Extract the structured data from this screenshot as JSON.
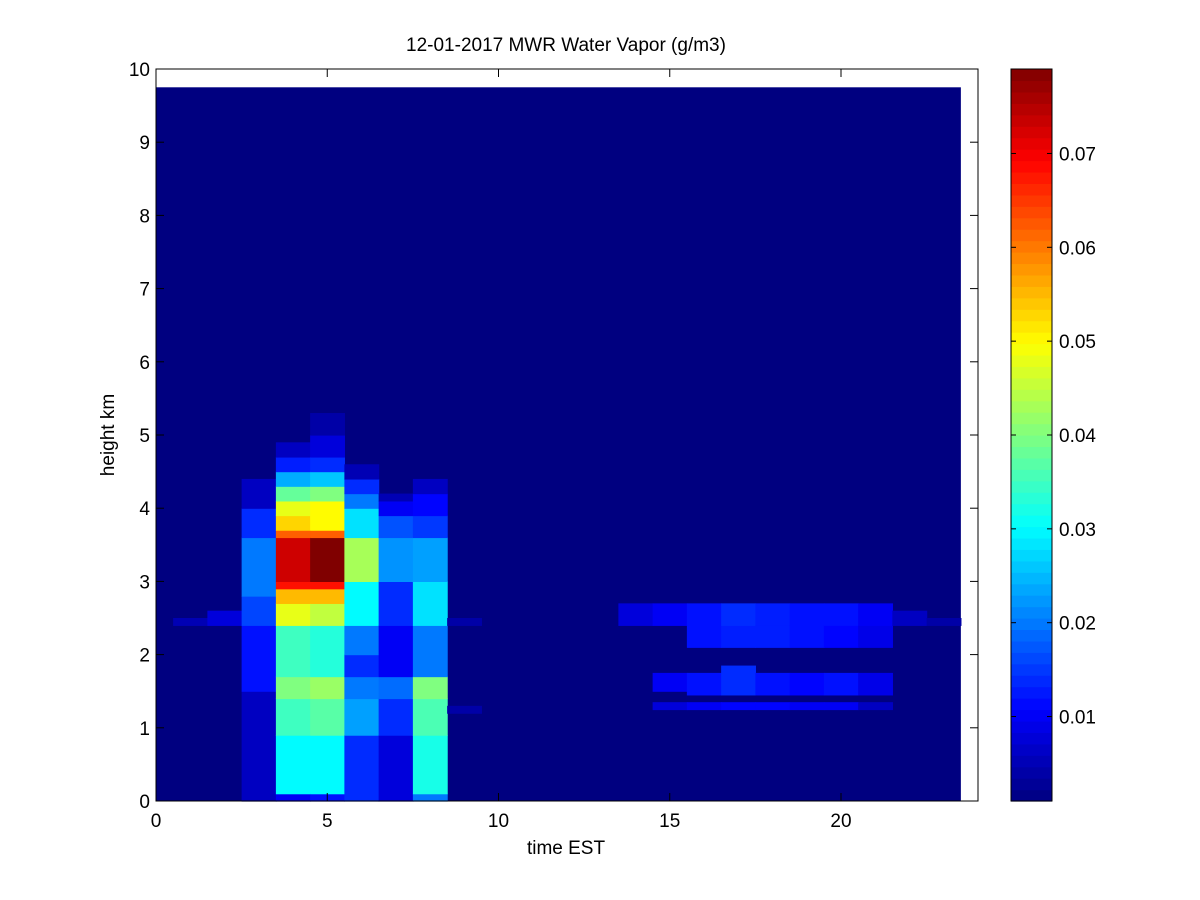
{
  "chart_data": {
    "type": "heatmap",
    "title": "12-01-2017 MWR Water Vapor (g/m3)",
    "xlabel": "time EST",
    "ylabel": "height km",
    "xlim": [
      0,
      24
    ],
    "ylim": [
      0,
      10
    ],
    "x_ticks": [
      0,
      5,
      10,
      15,
      20
    ],
    "y_ticks": [
      0,
      1,
      2,
      3,
      4,
      5,
      6,
      7,
      8,
      9,
      10
    ],
    "colormap": "jet",
    "clim": [
      0.001,
      0.079
    ],
    "colorbar_ticks": [
      0.01,
      0.02,
      0.03,
      0.04,
      0.05,
      0.06,
      0.07
    ],
    "colorbar_tick_labels": [
      "0.01",
      "0.02",
      "0.03",
      "0.04",
      "0.05",
      "0.06",
      "0.07"
    ],
    "grid": false,
    "background_value": 0.001,
    "data_extent": {
      "time_hours": [
        0,
        23.5
      ],
      "height_km": [
        0,
        9.75
      ]
    },
    "time_bins_hours": [
      0,
      1,
      2,
      3,
      4,
      5,
      6,
      7,
      8,
      9,
      10,
      11,
      12,
      13,
      14,
      15,
      16,
      17,
      18,
      19,
      20,
      21,
      22,
      23
    ],
    "height_bins_km": [
      0,
      0.1,
      0.2,
      0.3,
      0.4,
      0.5,
      0.6,
      0.7,
      0.8,
      0.9,
      1.0,
      1.1,
      1.2,
      1.3,
      1.4,
      1.5,
      1.6,
      1.7,
      1.8,
      1.9,
      2.0,
      2.1,
      2.2,
      2.3,
      2.4,
      2.5,
      2.6,
      2.7,
      2.8,
      2.9,
      3.0,
      3.1,
      3.2,
      3.3,
      3.4,
      3.5,
      3.6,
      3.7,
      3.8,
      3.9,
      4.0,
      4.1,
      4.2,
      4.3,
      4.4,
      4.5,
      4.6,
      4.7,
      4.8,
      4.9,
      5.0,
      5.1,
      5.2,
      5.3
    ],
    "columns": [
      {
        "time": 1,
        "segments": [
          {
            "from": 2.4,
            "to": 2.5,
            "value": 0.005
          }
        ]
      },
      {
        "time": 2,
        "segments": [
          {
            "from": 2.4,
            "to": 2.6,
            "value": 0.008
          }
        ]
      },
      {
        "time": 3,
        "segments": [
          {
            "from": 0.0,
            "to": 1.5,
            "value": 0.006
          },
          {
            "from": 1.5,
            "to": 2.4,
            "value": 0.012
          },
          {
            "from": 2.4,
            "to": 2.8,
            "value": 0.016
          },
          {
            "from": 2.8,
            "to": 3.6,
            "value": 0.02
          },
          {
            "from": 3.6,
            "to": 4.0,
            "value": 0.014
          },
          {
            "from": 4.0,
            "to": 4.4,
            "value": 0.006
          }
        ]
      },
      {
        "time": 4,
        "segments": [
          {
            "from": 0.0,
            "to": 0.1,
            "value": 0.01
          },
          {
            "from": 0.1,
            "to": 0.9,
            "value": 0.03
          },
          {
            "from": 0.9,
            "to": 1.4,
            "value": 0.035
          },
          {
            "from": 1.4,
            "to": 1.7,
            "value": 0.04
          },
          {
            "from": 1.7,
            "to": 2.4,
            "value": 0.035
          },
          {
            "from": 2.4,
            "to": 2.7,
            "value": 0.048
          },
          {
            "from": 2.7,
            "to": 2.9,
            "value": 0.055
          },
          {
            "from": 2.9,
            "to": 3.0,
            "value": 0.068
          },
          {
            "from": 3.0,
            "to": 3.6,
            "value": 0.073
          },
          {
            "from": 3.6,
            "to": 3.7,
            "value": 0.062
          },
          {
            "from": 3.7,
            "to": 3.9,
            "value": 0.053
          },
          {
            "from": 3.9,
            "to": 4.1,
            "value": 0.048
          },
          {
            "from": 4.1,
            "to": 4.3,
            "value": 0.038
          },
          {
            "from": 4.3,
            "to": 4.5,
            "value": 0.024
          },
          {
            "from": 4.5,
            "to": 4.7,
            "value": 0.013
          },
          {
            "from": 4.7,
            "to": 4.9,
            "value": 0.006
          }
        ]
      },
      {
        "time": 5,
        "segments": [
          {
            "from": 0.0,
            "to": 0.1,
            "value": 0.012
          },
          {
            "from": 0.1,
            "to": 0.9,
            "value": 0.03
          },
          {
            "from": 0.9,
            "to": 1.4,
            "value": 0.037
          },
          {
            "from": 1.4,
            "to": 1.7,
            "value": 0.042
          },
          {
            "from": 1.7,
            "to": 2.4,
            "value": 0.033
          },
          {
            "from": 2.4,
            "to": 2.7,
            "value": 0.045
          },
          {
            "from": 2.7,
            "to": 2.9,
            "value": 0.055
          },
          {
            "from": 2.9,
            "to": 3.0,
            "value": 0.068
          },
          {
            "from": 3.0,
            "to": 3.6,
            "value": 0.079
          },
          {
            "from": 3.6,
            "to": 3.7,
            "value": 0.062
          },
          {
            "from": 3.7,
            "to": 4.1,
            "value": 0.05
          },
          {
            "from": 4.1,
            "to": 4.3,
            "value": 0.04
          },
          {
            "from": 4.3,
            "to": 4.5,
            "value": 0.026
          },
          {
            "from": 4.5,
            "to": 4.7,
            "value": 0.014
          },
          {
            "from": 4.7,
            "to": 5.0,
            "value": 0.008
          },
          {
            "from": 5.0,
            "to": 5.3,
            "value": 0.004
          }
        ]
      },
      {
        "time": 6,
        "segments": [
          {
            "from": 0.0,
            "to": 0.9,
            "value": 0.014
          },
          {
            "from": 0.9,
            "to": 1.4,
            "value": 0.023
          },
          {
            "from": 1.4,
            "to": 1.7,
            "value": 0.02
          },
          {
            "from": 1.7,
            "to": 2.0,
            "value": 0.014
          },
          {
            "from": 2.0,
            "to": 2.4,
            "value": 0.02
          },
          {
            "from": 2.4,
            "to": 3.0,
            "value": 0.03
          },
          {
            "from": 3.0,
            "to": 3.6,
            "value": 0.043
          },
          {
            "from": 3.6,
            "to": 4.0,
            "value": 0.028
          },
          {
            "from": 4.0,
            "to": 4.2,
            "value": 0.02
          },
          {
            "from": 4.2,
            "to": 4.4,
            "value": 0.014
          },
          {
            "from": 4.4,
            "to": 4.6,
            "value": 0.005
          }
        ]
      },
      {
        "time": 7,
        "segments": [
          {
            "from": 0.0,
            "to": 0.9,
            "value": 0.008
          },
          {
            "from": 0.9,
            "to": 1.4,
            "value": 0.014
          },
          {
            "from": 1.4,
            "to": 1.7,
            "value": 0.019
          },
          {
            "from": 1.7,
            "to": 2.4,
            "value": 0.01
          },
          {
            "from": 2.4,
            "to": 3.0,
            "value": 0.014
          },
          {
            "from": 3.0,
            "to": 3.6,
            "value": 0.022
          },
          {
            "from": 3.6,
            "to": 3.9,
            "value": 0.017
          },
          {
            "from": 3.9,
            "to": 4.1,
            "value": 0.01
          },
          {
            "from": 4.1,
            "to": 4.2,
            "value": 0.005
          }
        ]
      },
      {
        "time": 8,
        "segments": [
          {
            "from": 0.0,
            "to": 0.1,
            "value": 0.02
          },
          {
            "from": 0.1,
            "to": 0.9,
            "value": 0.032
          },
          {
            "from": 0.9,
            "to": 1.4,
            "value": 0.036
          },
          {
            "from": 1.4,
            "to": 1.7,
            "value": 0.04
          },
          {
            "from": 1.7,
            "to": 2.4,
            "value": 0.02
          },
          {
            "from": 2.4,
            "to": 3.0,
            "value": 0.028
          },
          {
            "from": 3.0,
            "to": 3.6,
            "value": 0.023
          },
          {
            "from": 3.6,
            "to": 3.9,
            "value": 0.015
          },
          {
            "from": 3.9,
            "to": 4.2,
            "value": 0.011
          },
          {
            "from": 4.2,
            "to": 4.4,
            "value": 0.006
          }
        ]
      },
      {
        "time": 9,
        "segments": [
          {
            "from": 1.2,
            "to": 1.3,
            "value": 0.004
          },
          {
            "from": 2.4,
            "to": 2.5,
            "value": 0.004
          }
        ]
      },
      {
        "time": 14,
        "segments": [
          {
            "from": 2.4,
            "to": 2.7,
            "value": 0.008
          }
        ]
      },
      {
        "time": 15,
        "segments": [
          {
            "from": 1.25,
            "to": 1.35,
            "value": 0.008
          },
          {
            "from": 1.5,
            "to": 1.75,
            "value": 0.01
          },
          {
            "from": 2.4,
            "to": 2.7,
            "value": 0.01
          }
        ]
      },
      {
        "time": 16,
        "segments": [
          {
            "from": 1.25,
            "to": 1.35,
            "value": 0.01
          },
          {
            "from": 1.45,
            "to": 1.75,
            "value": 0.012
          },
          {
            "from": 2.1,
            "to": 2.4,
            "value": 0.012
          },
          {
            "from": 2.4,
            "to": 2.7,
            "value": 0.012
          }
        ]
      },
      {
        "time": 17,
        "segments": [
          {
            "from": 1.25,
            "to": 1.35,
            "value": 0.011
          },
          {
            "from": 1.45,
            "to": 1.85,
            "value": 0.014
          },
          {
            "from": 2.1,
            "to": 2.4,
            "value": 0.013
          },
          {
            "from": 2.4,
            "to": 2.7,
            "value": 0.014
          }
        ]
      },
      {
        "time": 18,
        "segments": [
          {
            "from": 1.25,
            "to": 1.35,
            "value": 0.011
          },
          {
            "from": 1.45,
            "to": 1.75,
            "value": 0.012
          },
          {
            "from": 2.1,
            "to": 2.4,
            "value": 0.013
          },
          {
            "from": 2.4,
            "to": 2.7,
            "value": 0.013
          }
        ]
      },
      {
        "time": 19,
        "segments": [
          {
            "from": 1.25,
            "to": 1.35,
            "value": 0.01
          },
          {
            "from": 1.45,
            "to": 1.75,
            "value": 0.011
          },
          {
            "from": 2.1,
            "to": 2.4,
            "value": 0.012
          },
          {
            "from": 2.4,
            "to": 2.7,
            "value": 0.012
          }
        ]
      },
      {
        "time": 20,
        "segments": [
          {
            "from": 1.25,
            "to": 1.35,
            "value": 0.01
          },
          {
            "from": 1.45,
            "to": 1.75,
            "value": 0.012
          },
          {
            "from": 2.1,
            "to": 2.4,
            "value": 0.011
          },
          {
            "from": 2.4,
            "to": 2.7,
            "value": 0.012
          }
        ]
      },
      {
        "time": 21,
        "segments": [
          {
            "from": 1.25,
            "to": 1.35,
            "value": 0.006
          },
          {
            "from": 1.45,
            "to": 1.75,
            "value": 0.009
          },
          {
            "from": 2.1,
            "to": 2.4,
            "value": 0.009
          },
          {
            "from": 2.4,
            "to": 2.7,
            "value": 0.01
          }
        ]
      },
      {
        "time": 22,
        "segments": [
          {
            "from": 2.4,
            "to": 2.6,
            "value": 0.006
          }
        ]
      },
      {
        "time": 23,
        "segments": [
          {
            "from": 2.4,
            "to": 2.5,
            "value": 0.004
          }
        ]
      }
    ]
  }
}
